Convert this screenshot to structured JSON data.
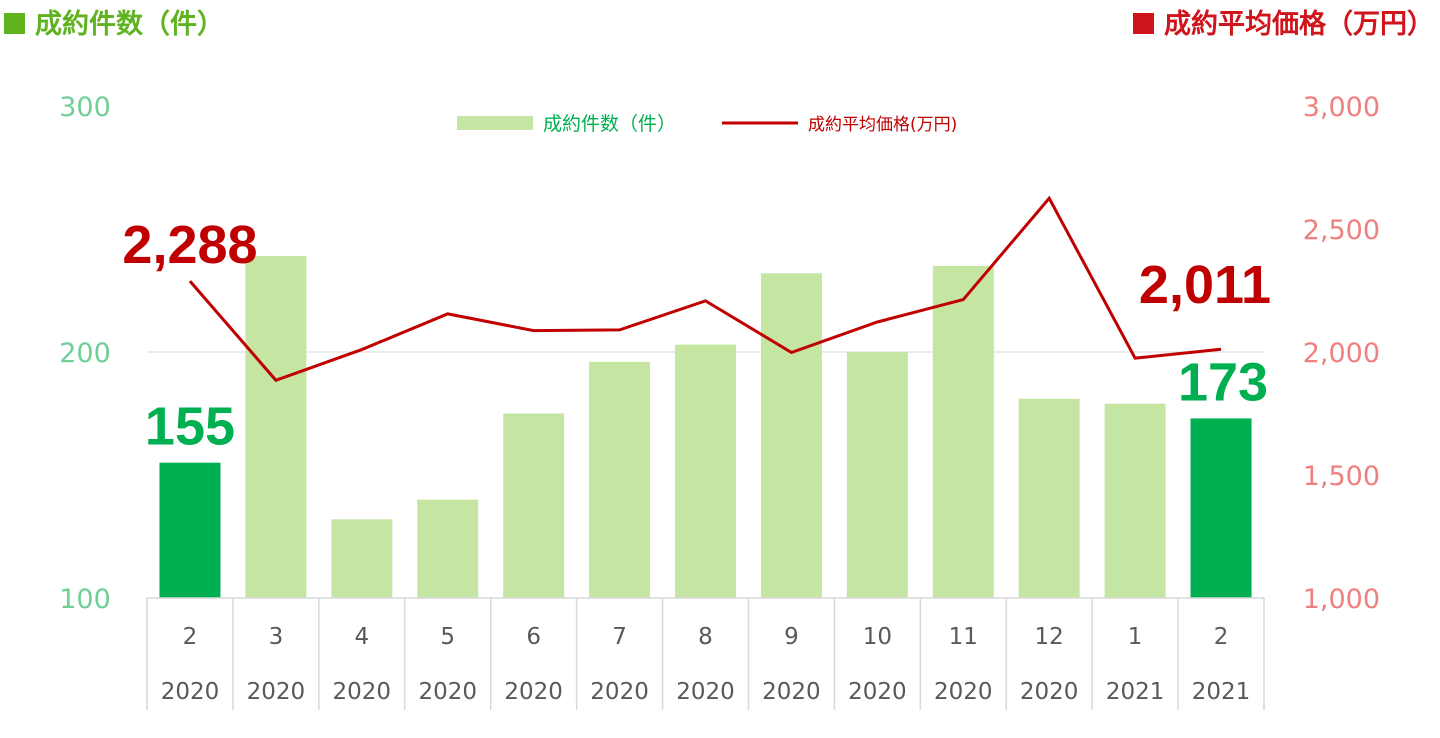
{
  "header": {
    "left_title": "成約件数（件）",
    "right_title": "成約平均価格（万円）"
  },
  "colors": {
    "bar_default": "#c5e6a3",
    "bar_highlight": "#00b050",
    "line": "#c00000",
    "left_axis_text": "#6fcf97",
    "right_axis_text": "#f08080",
    "highlight_count_label": "#00b050",
    "highlight_price_label": "#c00000"
  },
  "chart_data": {
    "type": "bar",
    "categories": [
      [
        "2",
        "2020"
      ],
      [
        "3",
        "2020"
      ],
      [
        "4",
        "2020"
      ],
      [
        "5",
        "2020"
      ],
      [
        "6",
        "2020"
      ],
      [
        "7",
        "2020"
      ],
      [
        "8",
        "2020"
      ],
      [
        "9",
        "2020"
      ],
      [
        "10",
        "2020"
      ],
      [
        "11",
        "2020"
      ],
      [
        "12",
        "2020"
      ],
      [
        "1",
        "2021"
      ],
      [
        "2",
        "2021"
      ]
    ],
    "y_left": {
      "ylim": [
        100,
        300
      ],
      "ticks": [
        "100",
        "200",
        "300"
      ]
    },
    "y_right": {
      "ylim": [
        1000,
        3000
      ],
      "ticks": [
        "1,000",
        "1,500",
        "2,000",
        "2,500",
        "3,000"
      ]
    },
    "grid": "horizontal at 200",
    "legend": {
      "position": "top-center"
    },
    "series": [
      {
        "name": "成約件数（件）",
        "type": "bar",
        "axis": "left",
        "values": [
          155,
          239,
          132,
          140,
          175,
          196,
          203,
          232,
          200,
          235,
          181,
          179,
          173
        ],
        "highlight_indices": [
          0,
          12
        ]
      },
      {
        "name": "成約平均価格(万円)",
        "type": "line",
        "axis": "right",
        "values": [
          2288,
          1885,
          2010,
          2155,
          2087,
          2090,
          2208,
          1998,
          2122,
          2213,
          2625,
          1975,
          2011
        ]
      }
    ],
    "annotations": [
      {
        "series": 0,
        "index": 0,
        "text": "155"
      },
      {
        "series": 0,
        "index": 12,
        "text": "173"
      },
      {
        "series": 1,
        "index": 0,
        "text": "2,288"
      },
      {
        "series": 1,
        "index": 12,
        "text": "2,011"
      }
    ]
  }
}
